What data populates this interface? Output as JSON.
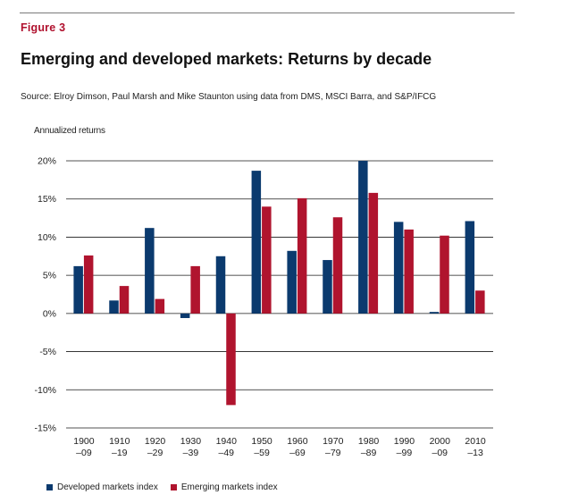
{
  "header": {
    "figure_label": "Figure 3",
    "title": "Emerging and developed markets: Returns by decade",
    "source": "Source: Elroy Dimson, Paul Marsh and Mike Staunton using data from DMS, MSCI Barra, and S&P/IFCG"
  },
  "colors": {
    "developed": "#0b3a6e",
    "emerging": "#b0142e",
    "accent": "#b0102d",
    "gridline": "#1a1a1a"
  },
  "chart_data": {
    "type": "bar",
    "title": "Emerging and developed markets: Returns by decade",
    "ylabel": "Annualized returns",
    "xlabel": "",
    "ylim": [
      -15,
      20
    ],
    "yticks": [
      20,
      15,
      10,
      5,
      0,
      -5,
      -10,
      -15
    ],
    "ytick_labels": [
      "20%",
      "15%",
      "10%",
      "5%",
      "0%",
      "-5%",
      "-10%",
      "-15%"
    ],
    "grid": true,
    "legend_position": "bottom-left",
    "categories": [
      [
        "1900",
        "–09"
      ],
      [
        "1910",
        "–19"
      ],
      [
        "1920",
        "–29"
      ],
      [
        "1930",
        "–39"
      ],
      [
        "1940",
        "–49"
      ],
      [
        "1950",
        "–59"
      ],
      [
        "1960",
        "–69"
      ],
      [
        "1970",
        "–79"
      ],
      [
        "1980",
        "–89"
      ],
      [
        "1990",
        "–99"
      ],
      [
        "2000",
        "–09"
      ],
      [
        "2010",
        "–13"
      ]
    ],
    "series": [
      {
        "name": "Developed markets index",
        "color": "#0b3a6e",
        "values": [
          6.2,
          1.7,
          11.2,
          -0.6,
          7.5,
          18.7,
          8.2,
          7.0,
          20.0,
          12.0,
          0.2,
          12.1
        ]
      },
      {
        "name": "Emerging markets index",
        "color": "#b0142e",
        "values": [
          7.6,
          3.6,
          1.9,
          6.2,
          -12.0,
          14.0,
          15.1,
          12.6,
          15.8,
          11.0,
          10.2,
          3.0
        ]
      }
    ]
  }
}
